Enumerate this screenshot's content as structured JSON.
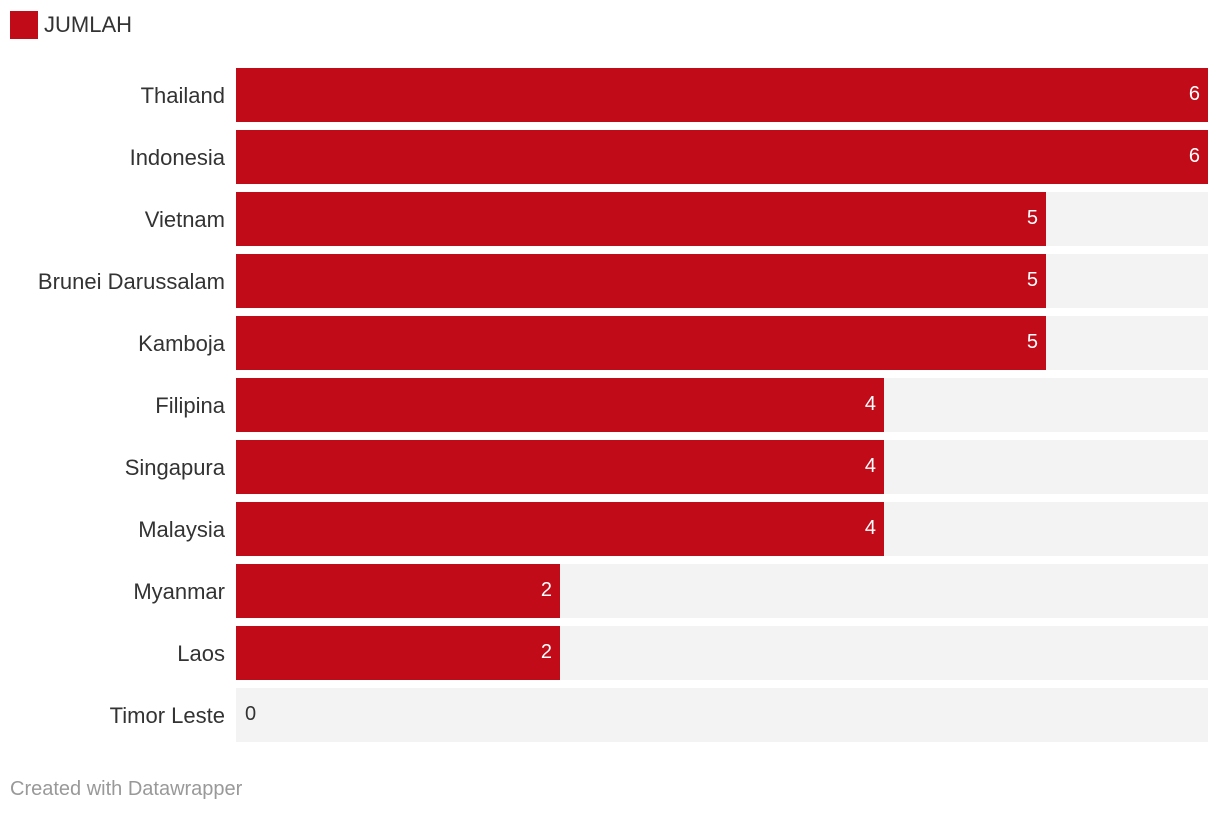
{
  "chart_data": {
    "type": "bar",
    "orientation": "horizontal",
    "categories": [
      "Thailand",
      "Indonesia",
      "Vietnam",
      "Brunei Darussalam",
      "Kamboja",
      "Filipina",
      "Singapura",
      "Malaysia",
      "Myanmar",
      "Laos",
      "Timor Leste"
    ],
    "series": [
      {
        "name": "JUMLAH",
        "values": [
          6,
          6,
          5,
          5,
          5,
          4,
          4,
          4,
          2,
          2,
          0
        ],
        "color": "#c20b19"
      }
    ],
    "xlim": [
      0,
      6
    ],
    "track_color": "#f3f3f3",
    "legend": "top-left",
    "grid": false
  },
  "legend": {
    "label": "JUMLAH",
    "color": "#c20b19"
  },
  "footer": {
    "text": "Created with Datawrapper"
  }
}
